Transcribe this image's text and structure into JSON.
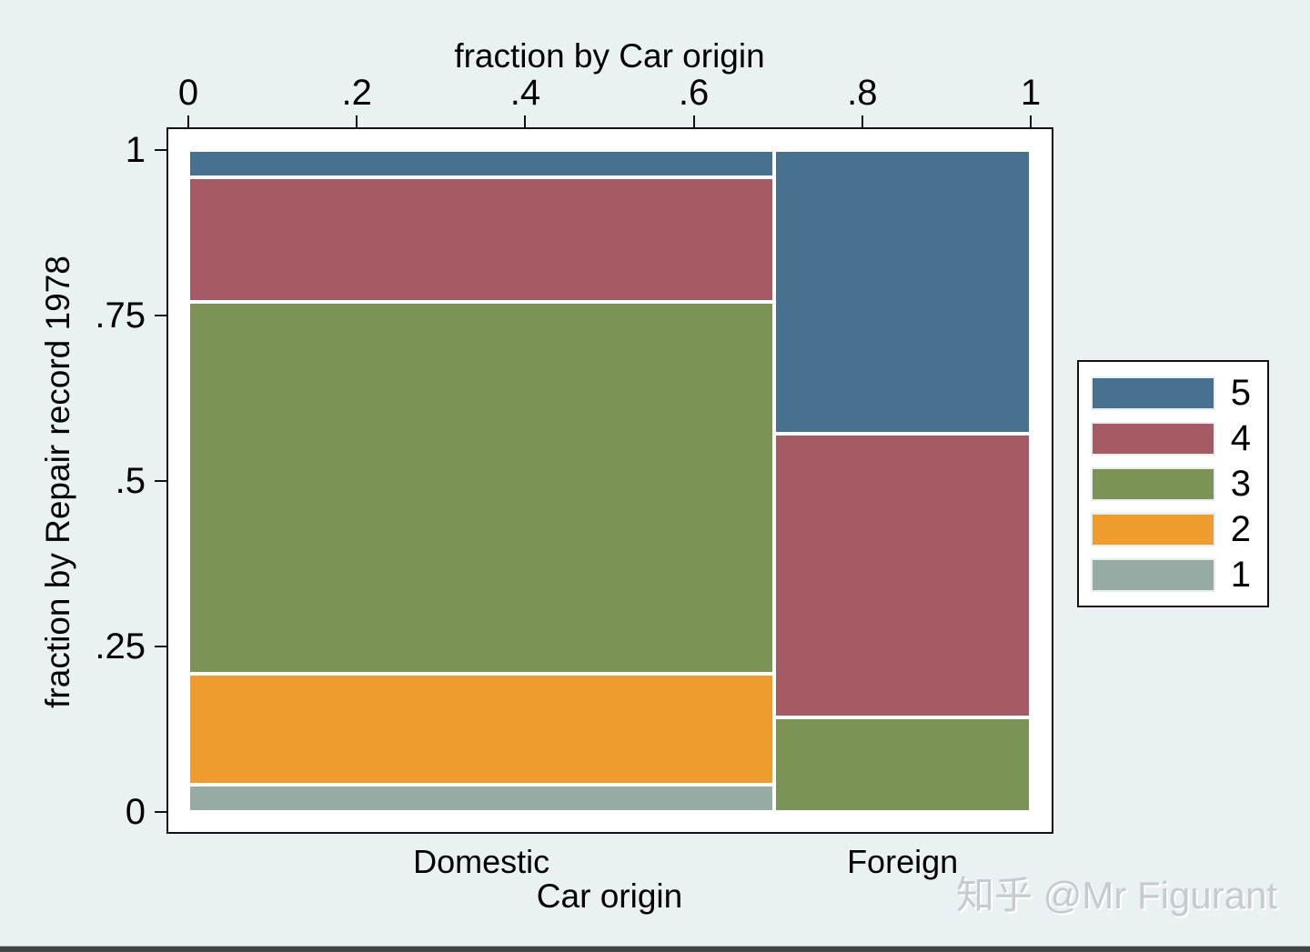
{
  "figure": {
    "background_color": "#eaf1f3",
    "watermark": "知乎 @Mr Figurant"
  },
  "chart_data": {
    "type": "mosaic",
    "description": "Spineplot: fraction by Repair record 1978 vs fraction by Car origin",
    "top_axis": {
      "title": "fraction by Car origin",
      "tick_labels": [
        "0",
        ".2",
        ".4",
        ".6",
        ".8",
        "1"
      ],
      "tick_values": [
        0,
        0.2,
        0.4,
        0.6,
        0.8,
        1
      ],
      "range": [
        0,
        1
      ]
    },
    "left_axis": {
      "title": "fraction by Repair record 1978",
      "tick_labels": [
        "0",
        ".25",
        ".5",
        ".75",
        "1"
      ],
      "tick_values": [
        0,
        0.25,
        0.5,
        0.75,
        1
      ],
      "range": [
        0,
        1
      ]
    },
    "bottom_axis": {
      "title": "Car origin"
    },
    "segment_colors": {
      "1": "#96aba4",
      "2": "#ee9c2d",
      "3": "#7b9355",
      "4": "#a65a64",
      "5": "#48708f"
    },
    "columns": [
      {
        "label": "Domestic",
        "x_from": 0,
        "x_to": 0.6957,
        "segments": [
          {
            "level": "1",
            "from": 0,
            "to": 0.0417
          },
          {
            "level": "2",
            "from": 0.0417,
            "to": 0.2083
          },
          {
            "level": "3",
            "from": 0.2083,
            "to": 0.7708
          },
          {
            "level": "4",
            "from": 0.7708,
            "to": 0.9583
          },
          {
            "level": "5",
            "from": 0.9583,
            "to": 1
          }
        ]
      },
      {
        "label": "Foreign",
        "x_from": 0.6957,
        "x_to": 1,
        "segments": [
          {
            "level": "3",
            "from": 0,
            "to": 0.1429
          },
          {
            "level": "4",
            "from": 0.1429,
            "to": 0.5714
          },
          {
            "level": "5",
            "from": 0.5714,
            "to": 1
          }
        ]
      }
    ],
    "legend": {
      "position": "right",
      "entries": [
        {
          "label": "5",
          "color": "#48708f"
        },
        {
          "label": "4",
          "color": "#a65a64"
        },
        {
          "label": "3",
          "color": "#7b9355"
        },
        {
          "label": "2",
          "color": "#ee9c2d"
        },
        {
          "label": "1",
          "color": "#96aba4"
        }
      ]
    }
  }
}
